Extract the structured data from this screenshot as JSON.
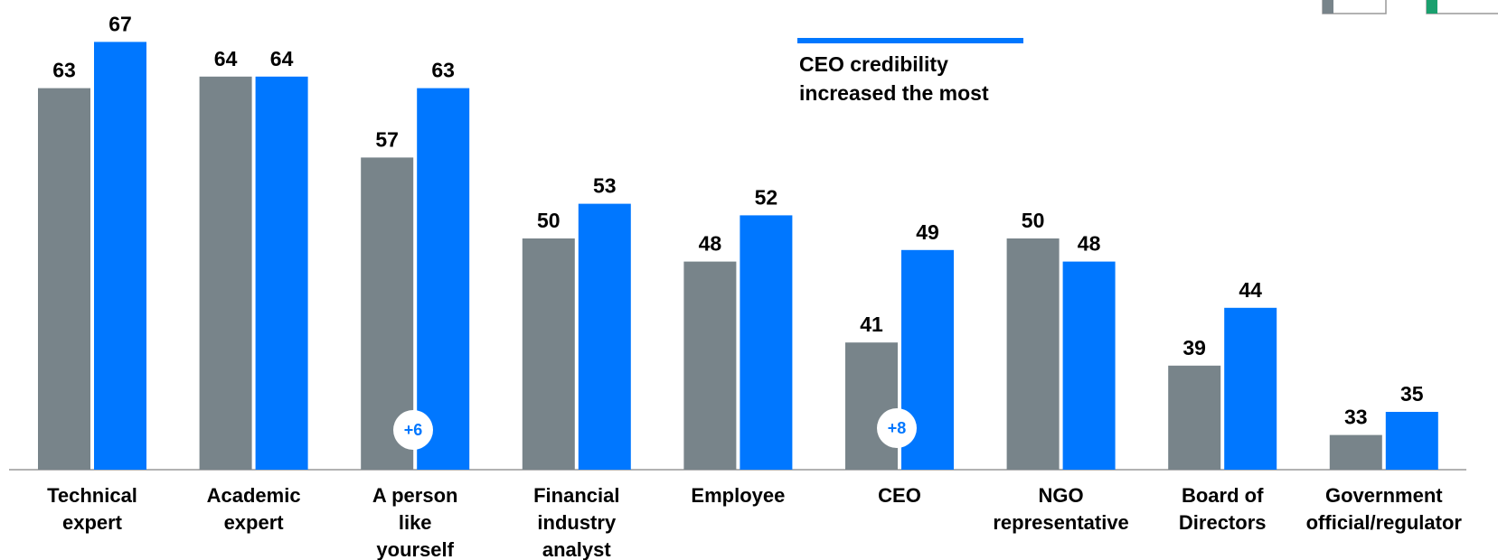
{
  "chart_data": {
    "type": "bar",
    "categories": [
      "Technical\nexpert",
      "Academic\nexpert",
      "A person\nlike\nyourself",
      "Financial\nindustry\nanalyst",
      "Employee",
      "CEO",
      "NGO\nrepresentative",
      "Board of\nDirectors",
      "Government\nofficial/regulator"
    ],
    "series": [
      {
        "color": "#78848a",
        "values": [
          63,
          64,
          57,
          50,
          48,
          41,
          50,
          39,
          33
        ]
      },
      {
        "color": "#0077ff",
        "values": [
          67,
          64,
          63,
          53,
          52,
          49,
          48,
          44,
          35
        ]
      }
    ],
    "ylim": [
      30,
      70
    ],
    "annotation": [
      "CEO credibility",
      "increased the most"
    ],
    "badges": [
      "+6",
      "+8"
    ]
  }
}
